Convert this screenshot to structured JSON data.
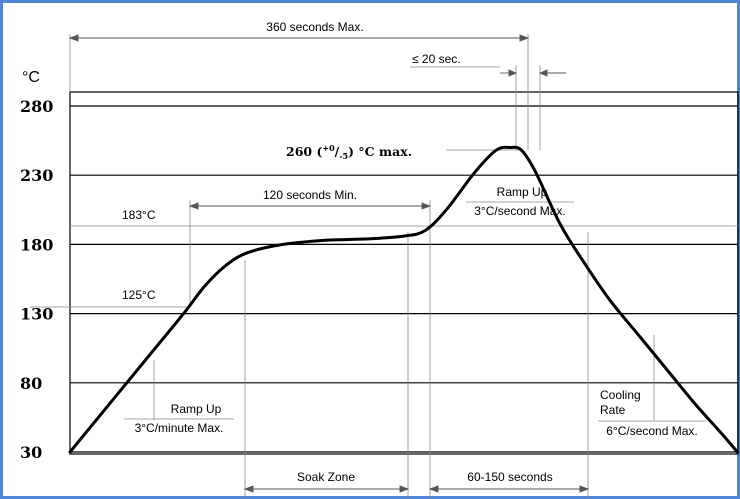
{
  "frame_color": "#4f86d6",
  "chart_data": {
    "type": "line",
    "title": "",
    "xlabel": "",
    "ylabel": "°C",
    "ylim": [
      30,
      280
    ],
    "yticks": [
      "280",
      "230",
      "180",
      "130",
      "80",
      "30"
    ],
    "series": [
      {
        "points": [
          [
            0,
            30
          ],
          [
            20,
            55
          ],
          [
            40,
            80
          ],
          [
            60,
            105
          ],
          [
            80,
            130
          ],
          [
            95,
            150
          ],
          [
            110,
            165
          ],
          [
            125,
            174
          ],
          [
            150,
            180
          ],
          [
            180,
            183
          ],
          [
            210,
            184
          ],
          [
            235,
            186
          ],
          [
            250,
            190
          ],
          [
            265,
            205
          ],
          [
            285,
            232
          ],
          [
            300,
            248
          ],
          [
            310,
            250
          ],
          [
            318,
            248
          ],
          [
            328,
            232
          ],
          [
            345,
            195
          ],
          [
            360,
            170
          ],
          [
            380,
            140
          ],
          [
            400,
            115
          ],
          [
            420,
            90
          ],
          [
            440,
            65
          ],
          [
            460,
            42
          ],
          [
            470,
            30
          ]
        ]
      }
    ],
    "reference_lines": [
      {
        "label": "183°C"
      },
      {
        "label": "125°C"
      }
    ],
    "annotations": {
      "total_time": "360 seconds Max.",
      "peak_time": "≤ 20 sec.",
      "peak_temp_main": "260 (",
      "peak_temp_sup": "+0",
      "peak_temp_slash": "/",
      "peak_temp_sub": "-5",
      "peak_temp_end": ") °C max.",
      "soak_min": "120 seconds Min.",
      "ramp_up_2_title": "Ramp Up",
      "ramp_up_2_rate": "3°C/second Max.",
      "ramp_up_1_title": "Ramp Up",
      "ramp_up_1_rate": "3°C/minute Max.",
      "cooling_title_1": "Cooling",
      "cooling_title_2": "Rate",
      "cooling_rate": "6°C/second Max.",
      "soak_zone": "Soak Zone",
      "reflow_time": "60-150 seconds"
    }
  }
}
